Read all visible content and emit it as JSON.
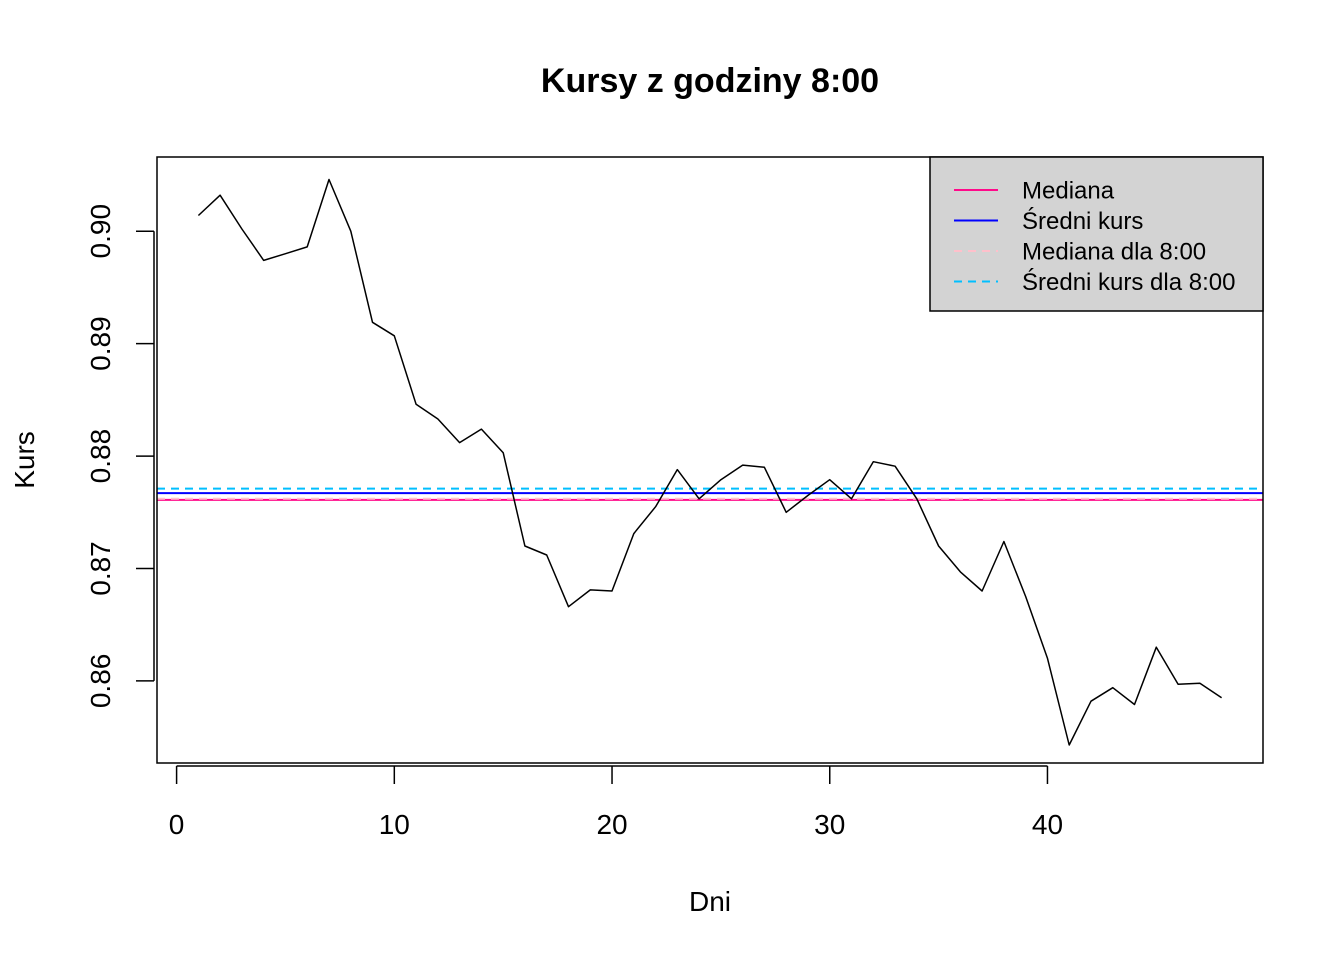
{
  "chart_data": {
    "type": "line",
    "title": "Kursy z godziny 8:00",
    "xlabel": "Dni",
    "ylabel": "Kurs",
    "xlim": [
      -0.9,
      49.9
    ],
    "ylim": [
      0.8527,
      0.9066
    ],
    "x_ticks": [
      0,
      10,
      20,
      30,
      40
    ],
    "x_tick_labels": [
      "0",
      "10",
      "20",
      "30",
      "40"
    ],
    "y_ticks": [
      0.86,
      0.87,
      0.88,
      0.89,
      0.9
    ],
    "y_tick_labels": [
      "0.86",
      "0.87",
      "0.88",
      "0.89",
      "0.90"
    ],
    "grid": false,
    "legend_position": "top-right",
    "series": [
      {
        "color": "#000000",
        "x": [
          1,
          2,
          3,
          4,
          5,
          6,
          7,
          8,
          9,
          10,
          11,
          12,
          13,
          14,
          15,
          16,
          17,
          18,
          19,
          20,
          21,
          22,
          23,
          24,
          25,
          26,
          27,
          28,
          29,
          30,
          31,
          32,
          33,
          34,
          35,
          36,
          37,
          38,
          39,
          40,
          41,
          42,
          43,
          44,
          45,
          46,
          47,
          48
        ],
        "values": [
          0.9014,
          0.9032,
          0.9002,
          0.8974,
          0.898,
          0.8986,
          0.9046,
          0.9,
          0.8919,
          0.8907,
          0.8846,
          0.8833,
          0.8812,
          0.8824,
          0.8803,
          0.872,
          0.8712,
          0.8666,
          0.8681,
          0.868,
          0.8731,
          0.8755,
          0.8788,
          0.8762,
          0.8779,
          0.8792,
          0.879,
          0.875,
          0.8765,
          0.8779,
          0.8762,
          0.8795,
          0.8791,
          0.8762,
          0.872,
          0.8697,
          0.868,
          0.8724,
          0.8675,
          0.862,
          0.8543,
          0.8582,
          0.8594,
          0.8579,
          0.863,
          0.8597,
          0.8598,
          0.8585
        ]
      }
    ],
    "reference_lines": [
      {
        "name": "Mediana",
        "value": 0.8761,
        "color": "#ff0a8a",
        "style": "solid"
      },
      {
        "name": "Średni kurs",
        "value": 0.8767,
        "color": "#0000ff",
        "style": "solid"
      },
      {
        "name": "Mediana dla 8:00",
        "value": 0.8762,
        "color": "#ffc0cb",
        "style": "dashed"
      },
      {
        "name": "Średni kurs dla 8:00",
        "value": 0.8771,
        "color": "#00bfff",
        "style": "dashed"
      }
    ],
    "legend": {
      "background": "#d3d3d3",
      "entries": [
        {
          "label": "Mediana",
          "color": "#ff0a8a",
          "style": "solid"
        },
        {
          "label": "Średni kurs",
          "color": "#0000ff",
          "style": "solid"
        },
        {
          "label": "Mediana dla 8:00",
          "color": "#ffc0cb",
          "style": "dashed"
        },
        {
          "label": "Średni kurs dla 8:00",
          "color": "#00bfff",
          "style": "dashed"
        }
      ]
    }
  }
}
